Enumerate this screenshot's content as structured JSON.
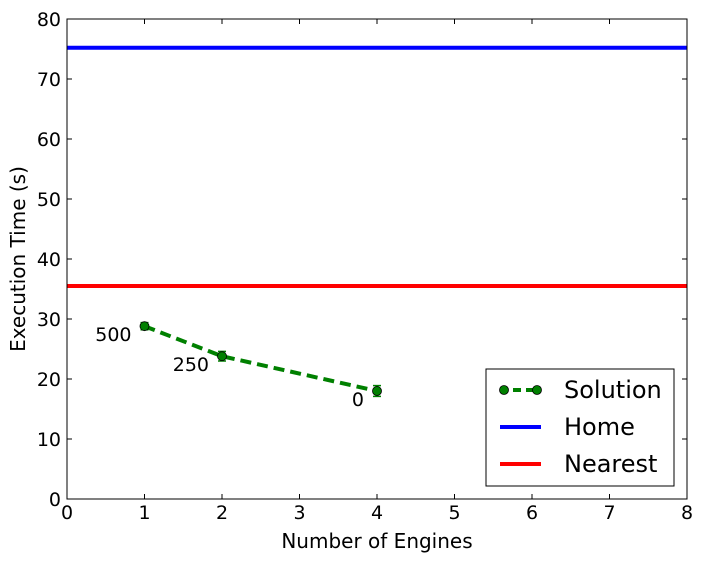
{
  "chart_data": {
    "type": "line",
    "title": "",
    "xlabel": "Number of Engines",
    "ylabel": "Execution Time (s)",
    "xlim": [
      0,
      8
    ],
    "ylim": [
      0,
      80
    ],
    "x_ticks": [
      0,
      1,
      2,
      3,
      4,
      5,
      6,
      7,
      8
    ],
    "y_ticks": [
      0,
      10,
      20,
      30,
      40,
      50,
      60,
      70,
      80
    ],
    "grid": false,
    "legend_position": "lower-right",
    "series": [
      {
        "name": "Solution",
        "style": "dashed-with-markers",
        "color": "#008000",
        "x": [
          1,
          2,
          4
        ],
        "y": [
          28.8,
          23.8,
          18.0
        ],
        "yerr": [
          0.6,
          0.8,
          0.9
        ],
        "point_labels": [
          "500",
          "250",
          "0"
        ]
      },
      {
        "name": "Home",
        "style": "horizontal-line",
        "color": "#0000ff",
        "y": 75.2
      },
      {
        "name": "Nearest",
        "style": "horizontal-line",
        "color": "#ff0000",
        "y": 35.5
      }
    ]
  }
}
